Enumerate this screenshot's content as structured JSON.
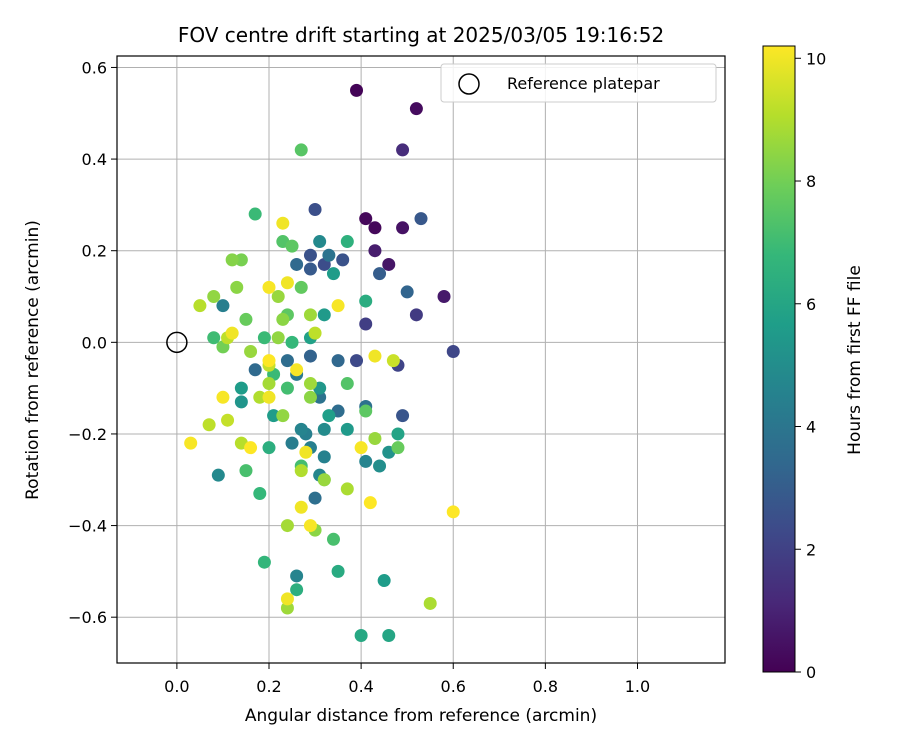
{
  "colors": {
    "viridis": [
      "#440154",
      "#482878",
      "#3e4989",
      "#31688e",
      "#26828e",
      "#1f9e89",
      "#35b779",
      "#6ece58",
      "#b5de2b",
      "#fde725"
    ],
    "grid": "#b0b0b0",
    "reference_marker": "#000000"
  },
  "chart_data": {
    "type": "scatter",
    "title": "FOV centre drift starting at 2025/03/05 19:16:52",
    "xlabel": "Angular distance from reference (arcmin)",
    "ylabel": "Rotation from reference (arcmin)",
    "xlim": [
      -0.13,
      1.19
    ],
    "ylim": [
      -0.7,
      0.625
    ],
    "xticks": [
      0.0,
      0.2,
      0.4,
      0.6,
      0.8,
      1.0
    ],
    "xtick_labels": [
      "0.0",
      "0.2",
      "0.4",
      "0.6",
      "0.8",
      "1.0"
    ],
    "yticks": [
      -0.6,
      -0.4,
      -0.2,
      0.0,
      0.2,
      0.4,
      0.6
    ],
    "ytick_labels": [
      "−0.6",
      "−0.4",
      "−0.2",
      "0.0",
      "0.2",
      "0.4",
      "0.6"
    ],
    "grid": true,
    "legend": {
      "position": "top-right",
      "entries": [
        "Reference platepar"
      ]
    },
    "reference_point": {
      "x": 0.0,
      "y": 0.0,
      "label": "Reference platepar"
    },
    "colorbar": {
      "label": "Hours from first FF file",
      "range": [
        0,
        10.2
      ],
      "ticks": [
        0,
        2,
        4,
        6,
        8,
        10
      ],
      "tick_labels": [
        "0",
        "2",
        "4",
        "6",
        "8",
        "10"
      ]
    },
    "points": [
      {
        "x": 0.39,
        "y": 0.55,
        "h": 0.1
      },
      {
        "x": 0.52,
        "y": 0.51,
        "h": 0.3
      },
      {
        "x": 0.49,
        "y": 0.42,
        "h": 1.3
      },
      {
        "x": 0.41,
        "y": 0.27,
        "h": 0.2
      },
      {
        "x": 0.43,
        "y": 0.25,
        "h": 0.2
      },
      {
        "x": 0.49,
        "y": 0.25,
        "h": 0.5
      },
      {
        "x": 0.43,
        "y": 0.2,
        "h": 0.8
      },
      {
        "x": 0.46,
        "y": 0.17,
        "h": 0.6
      },
      {
        "x": 0.58,
        "y": 0.1,
        "h": 0.7
      },
      {
        "x": 0.3,
        "y": 0.29,
        "h": 2.5
      },
      {
        "x": 0.53,
        "y": 0.27,
        "h": 2.8
      },
      {
        "x": 0.52,
        "y": 0.06,
        "h": 1.8
      },
      {
        "x": 0.6,
        "y": -0.02,
        "h": 2.2
      },
      {
        "x": 0.49,
        "y": -0.16,
        "h": 2.7
      },
      {
        "x": 0.41,
        "y": 0.04,
        "h": 1.9
      },
      {
        "x": 0.39,
        "y": -0.04,
        "h": 2.3
      },
      {
        "x": 0.48,
        "y": -0.05,
        "h": 2.1
      },
      {
        "x": 0.44,
        "y": 0.15,
        "h": 3.0
      },
      {
        "x": 0.5,
        "y": 0.11,
        "h": 3.3
      },
      {
        "x": 0.36,
        "y": 0.18,
        "h": 2.6
      },
      {
        "x": 0.32,
        "y": 0.17,
        "h": 2.4
      },
      {
        "x": 0.29,
        "y": 0.19,
        "h": 2.6
      },
      {
        "x": 0.29,
        "y": 0.16,
        "h": 2.9
      },
      {
        "x": 0.26,
        "y": 0.17,
        "h": 3.5
      },
      {
        "x": 0.33,
        "y": 0.19,
        "h": 3.9
      },
      {
        "x": 0.31,
        "y": 0.22,
        "h": 4.8
      },
      {
        "x": 0.41,
        "y": -0.14,
        "h": 3.8
      },
      {
        "x": 0.35,
        "y": -0.04,
        "h": 3.4
      },
      {
        "x": 0.29,
        "y": -0.03,
        "h": 3.2
      },
      {
        "x": 0.35,
        "y": -0.15,
        "h": 3.6
      },
      {
        "x": 0.31,
        "y": -0.12,
        "h": 3.9
      },
      {
        "x": 0.3,
        "y": -0.34,
        "h": 3.7
      },
      {
        "x": 0.17,
        "y": -0.06,
        "h": 3.5
      },
      {
        "x": 0.24,
        "y": -0.04,
        "h": 3.6
      },
      {
        "x": 0.26,
        "y": -0.07,
        "h": 4.2
      },
      {
        "x": 0.28,
        "y": -0.2,
        "h": 4.4
      },
      {
        "x": 0.27,
        "y": -0.19,
        "h": 4.6
      },
      {
        "x": 0.25,
        "y": -0.22,
        "h": 4.3
      },
      {
        "x": 0.29,
        "y": -0.23,
        "h": 4.4
      },
      {
        "x": 0.32,
        "y": -0.25,
        "h": 4.5
      },
      {
        "x": 0.26,
        "y": -0.51,
        "h": 4.6
      },
      {
        "x": 0.1,
        "y": 0.08,
        "h": 4.4
      },
      {
        "x": 0.32,
        "y": -0.19,
        "h": 4.9
      },
      {
        "x": 0.09,
        "y": -0.29,
        "h": 4.8
      },
      {
        "x": 0.41,
        "y": -0.26,
        "h": 4.6
      },
      {
        "x": 0.31,
        "y": -0.29,
        "h": 4.7
      },
      {
        "x": 0.44,
        "y": -0.27,
        "h": 5.0
      },
      {
        "x": 0.46,
        "y": -0.24,
        "h": 5.2
      },
      {
        "x": 0.14,
        "y": -0.13,
        "h": 5.3
      },
      {
        "x": 0.14,
        "y": -0.1,
        "h": 5.6
      },
      {
        "x": 0.21,
        "y": -0.16,
        "h": 5.6
      },
      {
        "x": 0.31,
        "y": -0.1,
        "h": 5.4
      },
      {
        "x": 0.37,
        "y": -0.19,
        "h": 5.5
      },
      {
        "x": 0.33,
        "y": -0.16,
        "h": 5.7
      },
      {
        "x": 0.34,
        "y": 0.15,
        "h": 5.6
      },
      {
        "x": 0.32,
        "y": 0.06,
        "h": 5.5
      },
      {
        "x": 0.41,
        "y": 0.09,
        "h": 6.3
      },
      {
        "x": 0.37,
        "y": 0.22,
        "h": 6.5
      },
      {
        "x": 0.29,
        "y": 0.01,
        "h": 5.8
      },
      {
        "x": 0.2,
        "y": -0.23,
        "h": 6.4
      },
      {
        "x": 0.45,
        "y": -0.52,
        "h": 5.6
      },
      {
        "x": 0.35,
        "y": -0.5,
        "h": 6.2
      },
      {
        "x": 0.4,
        "y": -0.64,
        "h": 6.1
      },
      {
        "x": 0.46,
        "y": -0.64,
        "h": 6.0
      },
      {
        "x": 0.48,
        "y": -0.2,
        "h": 5.9
      },
      {
        "x": 0.26,
        "y": -0.54,
        "h": 6.4
      },
      {
        "x": 0.19,
        "y": -0.48,
        "h": 6.7
      },
      {
        "x": 0.18,
        "y": -0.33,
        "h": 6.8
      },
      {
        "x": 0.17,
        "y": 0.28,
        "h": 6.9
      },
      {
        "x": 0.08,
        "y": 0.01,
        "h": 7.0
      },
      {
        "x": 0.19,
        "y": 0.01,
        "h": 6.9
      },
      {
        "x": 0.25,
        "y": 0.0,
        "h": 6.8
      },
      {
        "x": 0.24,
        "y": -0.1,
        "h": 7.1
      },
      {
        "x": 0.21,
        "y": -0.07,
        "h": 6.9
      },
      {
        "x": 0.15,
        "y": -0.28,
        "h": 7.2
      },
      {
        "x": 0.27,
        "y": -0.27,
        "h": 7.1
      },
      {
        "x": 0.32,
        "y": -0.3,
        "h": 7.3
      },
      {
        "x": 0.34,
        "y": -0.43,
        "h": 7.2
      },
      {
        "x": 0.37,
        "y": -0.09,
        "h": 7.4
      },
      {
        "x": 0.41,
        "y": -0.15,
        "h": 7.6
      },
      {
        "x": 0.48,
        "y": -0.23,
        "h": 7.8
      },
      {
        "x": 0.27,
        "y": 0.42,
        "h": 7.5
      },
      {
        "x": 0.23,
        "y": 0.22,
        "h": 7.4
      },
      {
        "x": 0.25,
        "y": 0.21,
        "h": 7.6
      },
      {
        "x": 0.27,
        "y": 0.12,
        "h": 7.7
      },
      {
        "x": 0.24,
        "y": 0.06,
        "h": 7.6
      },
      {
        "x": 0.15,
        "y": 0.05,
        "h": 7.8
      },
      {
        "x": 0.1,
        "y": -0.01,
        "h": 8.0
      },
      {
        "x": 0.14,
        "y": 0.18,
        "h": 8.1
      },
      {
        "x": 0.12,
        "y": 0.18,
        "h": 8.3
      },
      {
        "x": 0.13,
        "y": 0.12,
        "h": 8.4
      },
      {
        "x": 0.22,
        "y": 0.1,
        "h": 8.6
      },
      {
        "x": 0.08,
        "y": 0.1,
        "h": 8.5
      },
      {
        "x": 0.29,
        "y": 0.06,
        "h": 8.7
      },
      {
        "x": 0.23,
        "y": 0.05,
        "h": 8.4
      },
      {
        "x": 0.22,
        "y": 0.01,
        "h": 8.5
      },
      {
        "x": 0.16,
        "y": -0.02,
        "h": 8.6
      },
      {
        "x": 0.2,
        "y": -0.09,
        "h": 8.8
      },
      {
        "x": 0.29,
        "y": -0.09,
        "h": 8.7
      },
      {
        "x": 0.29,
        "y": -0.12,
        "h": 8.4
      },
      {
        "x": 0.23,
        "y": -0.16,
        "h": 8.5
      },
      {
        "x": 0.43,
        "y": -0.21,
        "h": 8.6
      },
      {
        "x": 0.24,
        "y": -0.4,
        "h": 8.8
      },
      {
        "x": 0.3,
        "y": -0.41,
        "h": 8.4
      },
      {
        "x": 0.37,
        "y": -0.32,
        "h": 8.9
      },
      {
        "x": 0.24,
        "y": -0.58,
        "h": 8.7
      },
      {
        "x": 0.55,
        "y": -0.57,
        "h": 8.9
      },
      {
        "x": 0.27,
        "y": -0.28,
        "h": 9.0
      },
      {
        "x": 0.32,
        "y": -0.3,
        "h": 8.6
      },
      {
        "x": 0.05,
        "y": 0.08,
        "h": 9.1
      },
      {
        "x": 0.11,
        "y": 0.01,
        "h": 9.2
      },
      {
        "x": 0.18,
        "y": -0.12,
        "h": 9.0
      },
      {
        "x": 0.2,
        "y": -0.05,
        "h": 9.3
      },
      {
        "x": 0.14,
        "y": -0.22,
        "h": 9.1
      },
      {
        "x": 0.07,
        "y": -0.18,
        "h": 9.2
      },
      {
        "x": 0.11,
        "y": -0.17,
        "h": 9.3
      },
      {
        "x": 0.3,
        "y": 0.02,
        "h": 9.2
      },
      {
        "x": 0.47,
        "y": -0.04,
        "h": 9.4
      },
      {
        "x": 0.23,
        "y": 0.26,
        "h": 10.0
      },
      {
        "x": 0.2,
        "y": 0.12,
        "h": 10.1
      },
      {
        "x": 0.24,
        "y": 0.13,
        "h": 10.0
      },
      {
        "x": 0.35,
        "y": 0.08,
        "h": 10.1
      },
      {
        "x": 0.12,
        "y": 0.02,
        "h": 10.0
      },
      {
        "x": 0.2,
        "y": -0.04,
        "h": 10.2
      },
      {
        "x": 0.26,
        "y": -0.06,
        "h": 10.1
      },
      {
        "x": 0.43,
        "y": -0.03,
        "h": 10.0
      },
      {
        "x": 0.1,
        "y": -0.12,
        "h": 10.1
      },
      {
        "x": 0.2,
        "y": -0.12,
        "h": 10.0
      },
      {
        "x": 0.16,
        "y": -0.23,
        "h": 10.2
      },
      {
        "x": 0.03,
        "y": -0.22,
        "h": 10.1
      },
      {
        "x": 0.28,
        "y": -0.24,
        "h": 10.0
      },
      {
        "x": 0.4,
        "y": -0.23,
        "h": 10.1
      },
      {
        "x": 0.42,
        "y": -0.35,
        "h": 10.2
      },
      {
        "x": 0.27,
        "y": -0.36,
        "h": 10.0
      },
      {
        "x": 0.29,
        "y": -0.4,
        "h": 10.1
      },
      {
        "x": 0.24,
        "y": -0.56,
        "h": 10.0
      },
      {
        "x": 0.6,
        "y": -0.37,
        "h": 10.2
      }
    ]
  }
}
